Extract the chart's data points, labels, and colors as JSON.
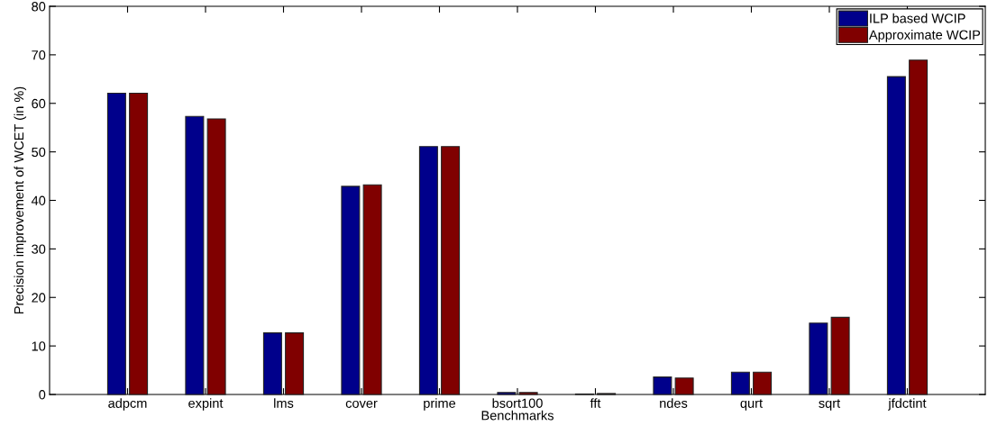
{
  "chart_data": {
    "type": "bar",
    "xlabel": "Benchmarks",
    "ylabel": "Precision improvement of WCET (in %)",
    "categories": [
      "adpcm",
      "expint",
      "lms",
      "cover",
      "prime",
      "bsort100",
      "fft",
      "ndes",
      "qurt",
      "sqrt",
      "jfdctint"
    ],
    "series": [
      {
        "name": "ILP based WCIP",
        "color": "#00008b",
        "values": [
          62.1,
          57.3,
          12.7,
          42.9,
          51.1,
          0.4,
          0.1,
          3.6,
          4.6,
          14.7,
          65.5
        ]
      },
      {
        "name": "Approximate WCIP",
        "color": "#800000",
        "values": [
          62.1,
          56.8,
          12.7,
          43.2,
          51.1,
          0.4,
          0.2,
          3.4,
          4.6,
          15.9,
          68.9
        ]
      }
    ],
    "ylim": [
      0,
      80
    ],
    "yticks": [
      0,
      10,
      20,
      30,
      40,
      50,
      60,
      70,
      80
    ],
    "grid": false,
    "legend": "top right"
  }
}
